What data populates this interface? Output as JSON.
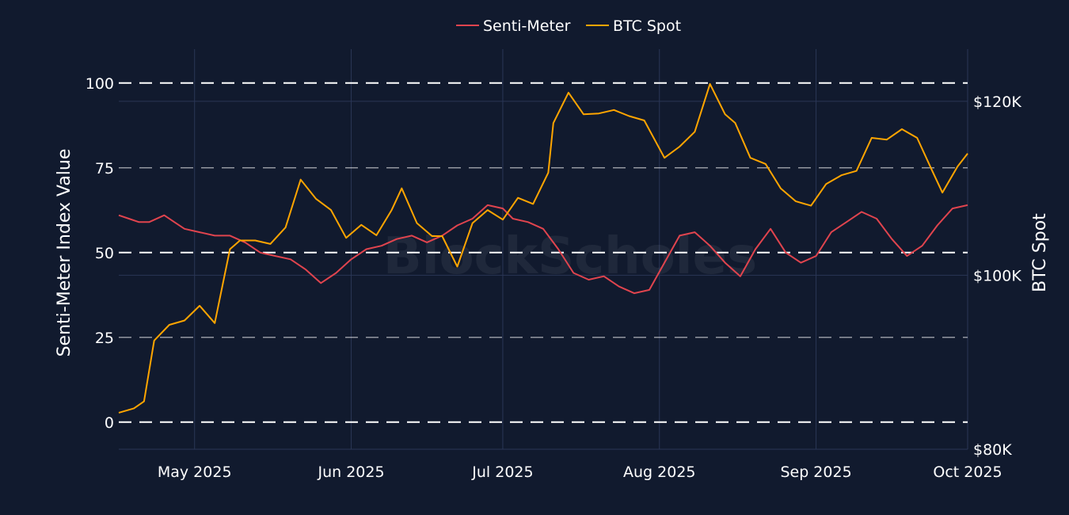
{
  "colors": {
    "background": "#111a2e",
    "grid": "#2a3656",
    "senti_line": "#e0444e",
    "btc_line": "#ffa500",
    "ref_dash": "#ffffff"
  },
  "watermark": "BlockScholes",
  "chart_data": {
    "type": "line",
    "legend": {
      "placement": "top-center",
      "entries": [
        "Senti-Meter",
        "BTC Spot"
      ]
    },
    "x_ticks": [
      "May 2025",
      "Jun 2025",
      "Jul 2025",
      "Aug 2025",
      "Sep 2025",
      "Oct 2025"
    ],
    "x_tick_dates": [
      "2025-05-01",
      "2025-06-01",
      "2025-07-01",
      "2025-08-01",
      "2025-09-01",
      "2025-10-01"
    ],
    "xlim": [
      "2025-04-16",
      "2025-10-01"
    ],
    "y_left": {
      "label": "Senti-Meter Index Value",
      "range": [
        -8,
        110
      ],
      "ticks": [
        "0",
        "25",
        "50",
        "75",
        "100"
      ],
      "tick_values": [
        0,
        25,
        50,
        75,
        100
      ],
      "reference_lines_major": [
        0,
        50,
        100
      ],
      "reference_lines_minor": [
        25,
        75
      ]
    },
    "y_right": {
      "label": "BTC Spot",
      "range": [
        80000,
        126000
      ],
      "ticks": [
        "$80K",
        "$100K",
        "$120K"
      ],
      "tick_values": [
        80000,
        100000,
        120000
      ]
    },
    "series": [
      {
        "name": "Senti-Meter",
        "axis": "left",
        "x": [
          "2025-04-16",
          "2025-04-18",
          "2025-04-20",
          "2025-04-22",
          "2025-04-25",
          "2025-04-27",
          "2025-04-29",
          "2025-05-02",
          "2025-05-05",
          "2025-05-08",
          "2025-05-11",
          "2025-05-14",
          "2025-05-17",
          "2025-05-20",
          "2025-05-23",
          "2025-05-26",
          "2025-05-29",
          "2025-06-01",
          "2025-06-04",
          "2025-06-07",
          "2025-06-10",
          "2025-06-13",
          "2025-06-16",
          "2025-06-19",
          "2025-06-22",
          "2025-06-25",
          "2025-06-28",
          "2025-07-01",
          "2025-07-03",
          "2025-07-06",
          "2025-07-09",
          "2025-07-12",
          "2025-07-15",
          "2025-07-18",
          "2025-07-21",
          "2025-07-24",
          "2025-07-27",
          "2025-07-30",
          "2025-08-02",
          "2025-08-05",
          "2025-08-08",
          "2025-08-11",
          "2025-08-14",
          "2025-08-17",
          "2025-08-20",
          "2025-08-23",
          "2025-08-26",
          "2025-08-29",
          "2025-09-01",
          "2025-09-04",
          "2025-09-07",
          "2025-09-10",
          "2025-09-13",
          "2025-09-16",
          "2025-09-19",
          "2025-09-22",
          "2025-09-25",
          "2025-09-28",
          "2025-10-01"
        ],
        "values": [
          61,
          60,
          59,
          59,
          61,
          59,
          57,
          56,
          55,
          55,
          53,
          50,
          49,
          48,
          45,
          41,
          44,
          48,
          51,
          52,
          54,
          55,
          53,
          55,
          58,
          60,
          64,
          63,
          60,
          59,
          57,
          51,
          44,
          42,
          43,
          40,
          38,
          39,
          47,
          55,
          56,
          52,
          47,
          43,
          51,
          57,
          50,
          47,
          49,
          56,
          59,
          62,
          60,
          54,
          49,
          52,
          58,
          63,
          64
        ]
      },
      {
        "name": "BTC Spot",
        "axis": "right",
        "x": [
          "2025-04-16",
          "2025-04-19",
          "2025-04-21",
          "2025-04-23",
          "2025-04-26",
          "2025-04-29",
          "2025-05-02",
          "2025-05-05",
          "2025-05-08",
          "2025-05-10",
          "2025-05-13",
          "2025-05-16",
          "2025-05-19",
          "2025-05-22",
          "2025-05-25",
          "2025-05-28",
          "2025-05-31",
          "2025-06-03",
          "2025-06-06",
          "2025-06-09",
          "2025-06-11",
          "2025-06-14",
          "2025-06-17",
          "2025-06-19",
          "2025-06-22",
          "2025-06-25",
          "2025-06-28",
          "2025-07-01",
          "2025-07-04",
          "2025-07-07",
          "2025-07-10",
          "2025-07-11",
          "2025-07-14",
          "2025-07-17",
          "2025-07-20",
          "2025-07-23",
          "2025-07-26",
          "2025-07-29",
          "2025-08-02",
          "2025-08-05",
          "2025-08-08",
          "2025-08-11",
          "2025-08-14",
          "2025-08-16",
          "2025-08-19",
          "2025-08-22",
          "2025-08-25",
          "2025-08-28",
          "2025-08-31",
          "2025-09-03",
          "2025-09-06",
          "2025-09-09",
          "2025-09-12",
          "2025-09-15",
          "2025-09-18",
          "2025-09-21",
          "2025-09-24",
          "2025-09-26",
          "2025-09-29",
          "2025-10-01"
        ],
        "values": [
          84200,
          84700,
          85500,
          92500,
          94300,
          94800,
          96500,
          94500,
          103000,
          104000,
          104000,
          103600,
          105500,
          111000,
          108800,
          107500,
          104300,
          105800,
          104600,
          107500,
          110000,
          106000,
          104500,
          104500,
          101000,
          106000,
          107500,
          106400,
          108900,
          108200,
          111800,
          117500,
          121000,
          118500,
          118600,
          119000,
          118300,
          117800,
          113500,
          114800,
          116500,
          122000,
          118500,
          117500,
          113500,
          112800,
          110000,
          108500,
          108000,
          110500,
          111500,
          112000,
          115800,
          115600,
          116800,
          115800,
          112000,
          109500,
          112500,
          114000
        ]
      }
    ]
  }
}
